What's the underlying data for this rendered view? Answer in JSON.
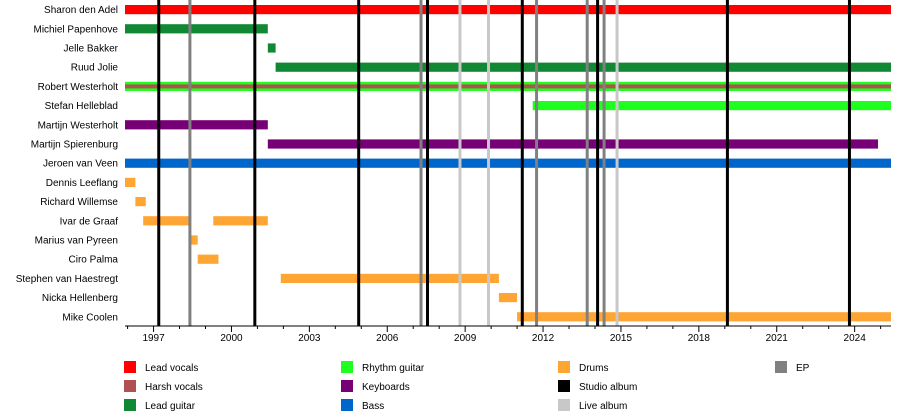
{
  "chart_data": {
    "type": "timeline",
    "title": "",
    "xlabel": "",
    "ylabel": "",
    "xlim": [
      1995.9,
      2025.4
    ],
    "x_ticks": [
      1997,
      2000,
      2003,
      2006,
      2009,
      2012,
      2015,
      2018,
      2021,
      2024
    ],
    "legend_position": "bottom",
    "members": [
      "Sharon den Adel",
      "Michiel Papenhove",
      "Jelle Bakker",
      "Ruud Jolie",
      "Robert Westerholt",
      "Stefan Helleblad",
      "Martijn Westerholt",
      "Martijn Spierenburg",
      "Jeroen van Veen",
      "Dennis Leeflang",
      "Richard Willemse",
      "Ivar de Graaf",
      "Marius van Pyreen",
      "Ciro Palma",
      "Stephen van Haestregt",
      "Nicka Hellenberg",
      "Mike Coolen"
    ],
    "roles": [
      {
        "name": "Lead vocals",
        "color": "#ff0000"
      },
      {
        "name": "Harsh vocals",
        "color": "#b05050"
      },
      {
        "name": "Lead guitar",
        "color": "#118833"
      },
      {
        "name": "Rhythm guitar",
        "color": "#1fff1f"
      },
      {
        "name": "Keyboards",
        "color": "#770077"
      },
      {
        "name": "Bass",
        "color": "#0066cc"
      },
      {
        "name": "Drums",
        "color": "#ffa533"
      }
    ],
    "release_types": [
      {
        "name": "Studio album",
        "color": "#000000"
      },
      {
        "name": "Live album",
        "color": "#c8c8c8"
      },
      {
        "name": "EP",
        "color": "#808080"
      }
    ],
    "releases": [
      {
        "year": 1997.2,
        "type": "Studio album"
      },
      {
        "year": 1998.4,
        "type": "EP"
      },
      {
        "year": 2000.9,
        "type": "Studio album"
      },
      {
        "year": 2004.9,
        "type": "Studio album"
      },
      {
        "year": 2007.3,
        "type": "EP"
      },
      {
        "year": 2007.55,
        "type": "Studio album"
      },
      {
        "year": 2008.8,
        "type": "Live album"
      },
      {
        "year": 2009.9,
        "type": "Live album"
      },
      {
        "year": 2011.2,
        "type": "Studio album"
      },
      {
        "year": 2011.75,
        "type": "EP"
      },
      {
        "year": 2013.7,
        "type": "EP"
      },
      {
        "year": 2014.1,
        "type": "Studio album"
      },
      {
        "year": 2014.35,
        "type": "EP"
      },
      {
        "year": 2014.85,
        "type": "Live album"
      },
      {
        "year": 2019.1,
        "type": "Studio album"
      },
      {
        "year": 2023.8,
        "type": "Studio album"
      }
    ],
    "spans": [
      {
        "member": "Sharon den Adel",
        "role": "Lead vocals",
        "start": 1995.9,
        "end": 2025.4
      },
      {
        "member": "Michiel Papenhove",
        "role": "Lead guitar",
        "start": 1995.9,
        "end": 2001.4
      },
      {
        "member": "Jelle Bakker",
        "role": "Lead guitar",
        "start": 2001.4,
        "end": 2001.7
      },
      {
        "member": "Ruud Jolie",
        "role": "Lead guitar",
        "start": 2001.7,
        "end": 2025.4
      },
      {
        "member": "Robert Westerholt",
        "role": "Rhythm guitar",
        "start": 1995.9,
        "end": 2025.4
      },
      {
        "member": "Robert Westerholt",
        "role": "Harsh vocals",
        "start": 1995.9,
        "end": 2025.4
      },
      {
        "member": "Stefan Helleblad",
        "role": "Rhythm guitar",
        "start": 2011.6,
        "end": 2025.4
      },
      {
        "member": "Martijn Westerholt",
        "role": "Keyboards",
        "start": 1995.9,
        "end": 2001.4
      },
      {
        "member": "Martijn Spierenburg",
        "role": "Keyboards",
        "start": 2001.4,
        "end": 2024.9
      },
      {
        "member": "Jeroen van Veen",
        "role": "Bass",
        "start": 1995.9,
        "end": 2025.4
      },
      {
        "member": "Dennis Leeflang",
        "role": "Drums",
        "start": 1995.9,
        "end": 1996.3
      },
      {
        "member": "Richard Willemse",
        "role": "Drums",
        "start": 1996.3,
        "end": 1996.7
      },
      {
        "member": "Ivar de Graaf",
        "role": "Drums",
        "start": 1996.6,
        "end": 1998.4
      },
      {
        "member": "Ivar de Graaf",
        "role": "Drums",
        "start": 1999.3,
        "end": 2001.4
      },
      {
        "member": "Marius van Pyreen",
        "role": "Drums",
        "start": 1998.4,
        "end": 1998.7
      },
      {
        "member": "Ciro Palma",
        "role": "Drums",
        "start": 1998.7,
        "end": 1999.5
      },
      {
        "member": "Stephen van Haestregt",
        "role": "Drums",
        "start": 2001.9,
        "end": 2010.3
      },
      {
        "member": "Nicka Hellenberg",
        "role": "Drums",
        "start": 2010.3,
        "end": 2011.0
      },
      {
        "member": "Mike Coolen",
        "role": "Drums",
        "start": 2011.0,
        "end": 2025.4
      }
    ]
  }
}
